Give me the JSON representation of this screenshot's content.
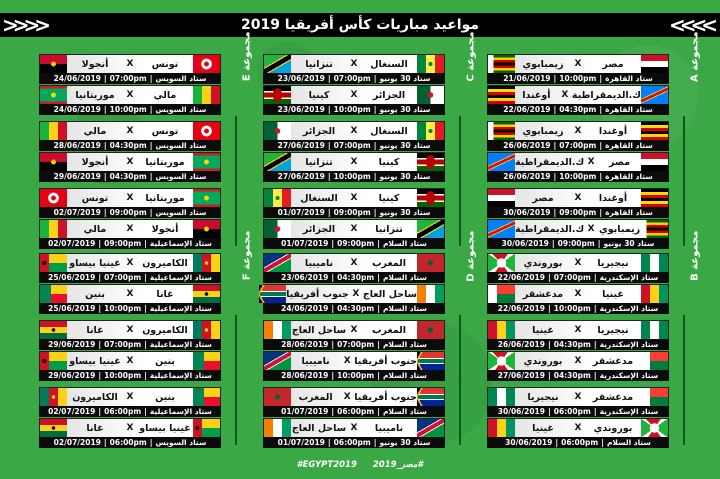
{
  "title": "مواعيد مباريات كأس أفريقيا 2019",
  "footer": {
    "tag_en": "#EGYPT2019",
    "tag_ar": "#مصر_2019"
  },
  "separator": "X",
  "columns": [
    {
      "groups": [
        {
          "label": "مجموعة E",
          "matches": [
            {
              "home": "تونس",
              "away": "أنجولا",
              "home_flag": "tunisia",
              "away_flag": "angola",
              "venue": "ستاد السويس",
              "time": "07:00pm",
              "date": "24/06/2019"
            },
            {
              "home": "مالي",
              "away": "موريتانيا",
              "home_flag": "mali",
              "away_flag": "mauritania",
              "venue": "ستاد السويس",
              "time": "10:00pm",
              "date": "24/06/2019"
            },
            {
              "home": "تونس",
              "away": "مالي",
              "home_flag": "tunisia",
              "away_flag": "mali",
              "venue": "ستاد السويس",
              "time": "04:30pm",
              "date": "28/06/2019"
            },
            {
              "home": "موريتانيا",
              "away": "أنجولا",
              "home_flag": "mauritania",
              "away_flag": "angola",
              "venue": "ستاد السويس",
              "time": "04:30pm",
              "date": "29/06/2019"
            },
            {
              "home": "موريتانيا",
              "away": "تونس",
              "home_flag": "mauritania",
              "away_flag": "tunisia",
              "venue": "ستاد السويس",
              "time": "09:00pm",
              "date": "02/07/2019"
            },
            {
              "home": "أنجولا",
              "away": "مالي",
              "home_flag": "angola",
              "away_flag": "mali",
              "venue": "ستاد الإسماعيلية",
              "time": "09:00pm",
              "date": "02/07/2019"
            }
          ]
        },
        {
          "label": "مجموعة F",
          "matches": [
            {
              "home": "الكاميرون",
              "away": "غينيا بيساو",
              "home_flag": "cameroon",
              "away_flag": "guineabissau",
              "venue": "ستاد الإسماعيلية",
              "time": "07:00pm",
              "date": "25/06/2019"
            },
            {
              "home": "غانا",
              "away": "بنين",
              "home_flag": "ghana",
              "away_flag": "benin",
              "venue": "ستاد الإسماعيلية",
              "time": "10:00pm",
              "date": "25/06/2019"
            },
            {
              "home": "الكاميرون",
              "away": "غانا",
              "home_flag": "cameroon",
              "away_flag": "ghana",
              "venue": "ستاد الإسماعيلية",
              "time": "07:00pm",
              "date": "29/06/2019"
            },
            {
              "home": "بنين",
              "away": "غينيا بيساو",
              "home_flag": "benin",
              "away_flag": "guineabissau",
              "venue": "ستاد الإسماعيلية",
              "time": "10:00pm",
              "date": "29/06/2019"
            },
            {
              "home": "بنين",
              "away": "الكاميرون",
              "home_flag": "benin",
              "away_flag": "cameroon",
              "venue": "ستاد الإسماعيلية",
              "time": "06:00pm",
              "date": "02/07/2019"
            },
            {
              "home": "غينيا بيساو",
              "away": "غانا",
              "home_flag": "guineabissau",
              "away_flag": "ghana",
              "venue": "ستاد السويس",
              "time": "06:00pm",
              "date": "02/07/2019"
            }
          ]
        }
      ]
    },
    {
      "groups": [
        {
          "label": "مجموعة C",
          "matches": [
            {
              "home": "السنغال",
              "away": "تنزانيا",
              "home_flag": "senegal",
              "away_flag": "tanzania",
              "venue": "ستاد 30 يونيو",
              "time": "07:00pm",
              "date": "23/06/2019"
            },
            {
              "home": "الجزائر",
              "away": "كينيا",
              "home_flag": "algeria",
              "away_flag": "kenya",
              "venue": "ستاد 30 يونيو",
              "time": "10:00pm",
              "date": "23/06/2019"
            },
            {
              "home": "السنغال",
              "away": "الجزائر",
              "home_flag": "senegal",
              "away_flag": "algeria",
              "venue": "ستاد 30 يونيو",
              "time": "07:00pm",
              "date": "27/06/2019"
            },
            {
              "home": "كينيا",
              "away": "تنزانيا",
              "home_flag": "kenya",
              "away_flag": "tanzania",
              "venue": "ستاد 30 يونيو",
              "time": "10:00pm",
              "date": "27/06/2019"
            },
            {
              "home": "كينيا",
              "away": "السنغال",
              "home_flag": "kenya",
              "away_flag": "senegal",
              "venue": "ستاد 30 يونيو",
              "time": "09:00pm",
              "date": "01/07/2019"
            },
            {
              "home": "تنزانيا",
              "away": "الجزائر",
              "home_flag": "tanzania",
              "away_flag": "algeria",
              "venue": "ستاد السلام",
              "time": "09:00pm",
              "date": "01/07/2019"
            }
          ]
        },
        {
          "label": "مجموعة D",
          "matches": [
            {
              "home": "المغرب",
              "away": "ناميبيا",
              "home_flag": "morocco",
              "away_flag": "namibia",
              "venue": "ستاد السلام",
              "time": "04:30pm",
              "date": "23/06/2019"
            },
            {
              "home": "ساحل العاج",
              "away": "جنوب أفريقيا",
              "home_flag": "ivorycoast",
              "away_flag": "southafrica",
              "venue": "ستاد السلام",
              "time": "04:30pm",
              "date": "24/06/2019"
            },
            {
              "home": "المغرب",
              "away": "ساحل العاج",
              "home_flag": "morocco",
              "away_flag": "ivorycoast",
              "venue": "ستاد السلام",
              "time": "07:00pm",
              "date": "28/06/2019"
            },
            {
              "home": "جنوب أفريقيا",
              "away": "ناميبيا",
              "home_flag": "southafrica",
              "away_flag": "namibia",
              "venue": "ستاد السلام",
              "time": "10:00pm",
              "date": "28/06/2019"
            },
            {
              "home": "جنوب أفريقيا",
              "away": "المغرب",
              "home_flag": "southafrica",
              "away_flag": "morocco",
              "venue": "ستاد السلام",
              "time": "06:00pm",
              "date": "01/07/2019"
            },
            {
              "home": "ناميبيا",
              "away": "ساحل العاج",
              "home_flag": "namibia",
              "away_flag": "ivorycoast",
              "venue": "ستاد 30 يونيو",
              "time": "06:00pm",
              "date": "01/07/2019"
            }
          ]
        }
      ]
    },
    {
      "groups": [
        {
          "label": "مجموعة A",
          "matches": [
            {
              "home": "مصر",
              "away": "زيمبابوي",
              "home_flag": "egypt",
              "away_flag": "zimbabwe",
              "venue": "ستاد القاهرة",
              "time": "10:00pm",
              "date": "21/06/2019"
            },
            {
              "home": "ك.الديمقراطية",
              "away": "أوغندا",
              "home_flag": "drc",
              "away_flag": "uganda",
              "venue": "ستاد القاهرة",
              "time": "04:30pm",
              "date": "22/06/2019"
            },
            {
              "home": "أوغندا",
              "away": "زيمبابوي",
              "home_flag": "uganda",
              "away_flag": "zimbabwe",
              "venue": "ستاد القاهرة",
              "time": "07:00pm",
              "date": "26/06/2019"
            },
            {
              "home": "مصر",
              "away": "ك.الديمقراطية",
              "home_flag": "egypt",
              "away_flag": "drc",
              "venue": "ستاد القاهرة",
              "time": "10:00pm",
              "date": "26/06/2019"
            },
            {
              "home": "أوغندا",
              "away": "مصر",
              "home_flag": "uganda",
              "away_flag": "egypt",
              "venue": "ستاد القاهرة",
              "time": "09:00pm",
              "date": "30/06/2019"
            },
            {
              "home": "زيمبابوي",
              "away": "ك.الديمقراطية",
              "home_flag": "zimbabwe",
              "away_flag": "drc",
              "venue": "ستاد 30 يونيو",
              "time": "09:00pm",
              "date": "30/06/2019"
            }
          ]
        },
        {
          "label": "مجموعة B",
          "matches": [
            {
              "home": "نيجيريا",
              "away": "بوروندي",
              "home_flag": "nigeria",
              "away_flag": "burundi",
              "venue": "ستاد الإسكندرية",
              "time": "07:00pm",
              "date": "22/06/2019"
            },
            {
              "home": "غينيا",
              "away": "مدغشقر",
              "home_flag": "guinea",
              "away_flag": "madagascar",
              "venue": "ستاد الإسكندرية",
              "time": "10:00pm",
              "date": "22/06/2019"
            },
            {
              "home": "نيجيريا",
              "away": "غينيا",
              "home_flag": "nigeria",
              "away_flag": "guinea",
              "venue": "ستاد الإسكندرية",
              "time": "04:30pm",
              "date": "26/06/2019"
            },
            {
              "home": "مدغشقر",
              "away": "بوروندي",
              "home_flag": "madagascar",
              "away_flag": "burundi",
              "venue": "ستاد الإسكندرية",
              "time": "04:30pm",
              "date": "27/06/2019"
            },
            {
              "home": "مدغشقر",
              "away": "نيجيريا",
              "home_flag": "madagascar",
              "away_flag": "nigeria",
              "venue": "ستاد الإسكندرية",
              "time": "06:00pm",
              "date": "30/06/2019"
            },
            {
              "home": "بوروندي",
              "away": "غينيا",
              "home_flag": "burundi",
              "away_flag": "guinea",
              "venue": "ستاد السلام",
              "time": "06:00pm",
              "date": "30/06/2019"
            }
          ]
        }
      ]
    }
  ]
}
